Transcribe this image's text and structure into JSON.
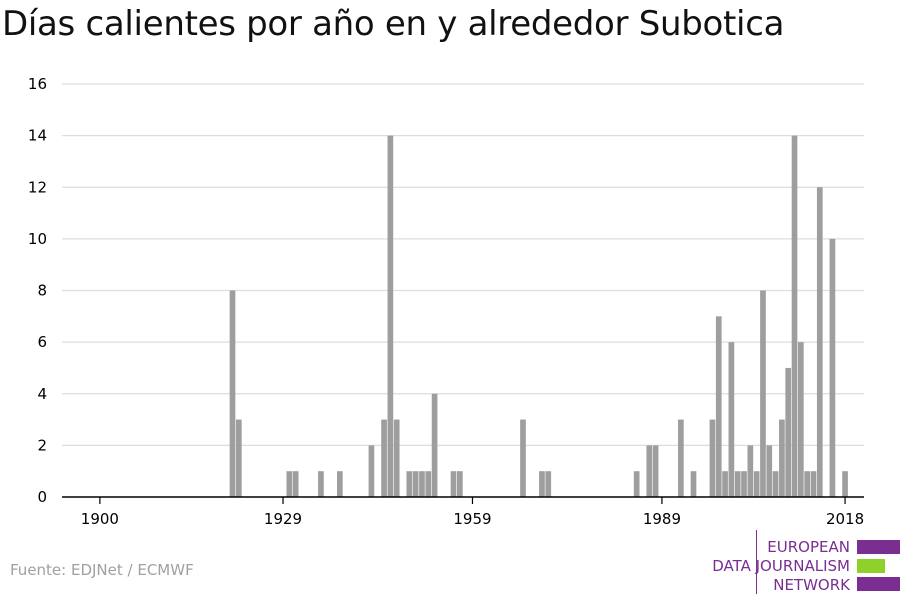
{
  "title": "Días calientes por año en y alrededor Subotica",
  "source": "Fuente: EDJNet / ECMWF",
  "logo": {
    "lines": [
      "EUROPEAN",
      "DATA JOURNALISM",
      "NETWORK"
    ],
    "colors": [
      "#7a2e91",
      "#8fd12b",
      "#7a2e91"
    ]
  },
  "colors": {
    "bar": "#9e9e9e",
    "grid": "#dddddd",
    "axis": "#000000"
  },
  "chart_data": {
    "type": "bar",
    "title": "Días calientes por año en y alrededor Subotica",
    "xlabel": "",
    "ylabel": "",
    "ylim": [
      0,
      16
    ],
    "yticks": [
      0,
      2,
      4,
      6,
      8,
      10,
      12,
      14,
      16
    ],
    "xticks": [
      1900,
      1929,
      1959,
      1989,
      2018
    ],
    "xlim": [
      1894,
      2021
    ],
    "grid": true,
    "x": [
      1921,
      1922,
      1930,
      1931,
      1935,
      1938,
      1943,
      1945,
      1946,
      1947,
      1949,
      1950,
      1951,
      1952,
      1953,
      1956,
      1957,
      1967,
      1970,
      1971,
      1985,
      1987,
      1988,
      1992,
      1994,
      1997,
      1998,
      1999,
      2000,
      2001,
      2002,
      2003,
      2004,
      2005,
      2006,
      2007,
      2008,
      2009,
      2010,
      2011,
      2012,
      2013,
      2014,
      2016,
      2018
    ],
    "values": [
      8,
      3,
      1,
      1,
      1,
      1,
      2,
      3,
      14,
      3,
      1,
      1,
      1,
      1,
      4,
      1,
      1,
      3,
      1,
      1,
      1,
      2,
      2,
      3,
      1,
      3,
      7,
      1,
      6,
      1,
      1,
      2,
      1,
      8,
      2,
      1,
      3,
      5,
      14,
      6,
      1,
      1,
      12,
      10,
      1
    ]
  }
}
